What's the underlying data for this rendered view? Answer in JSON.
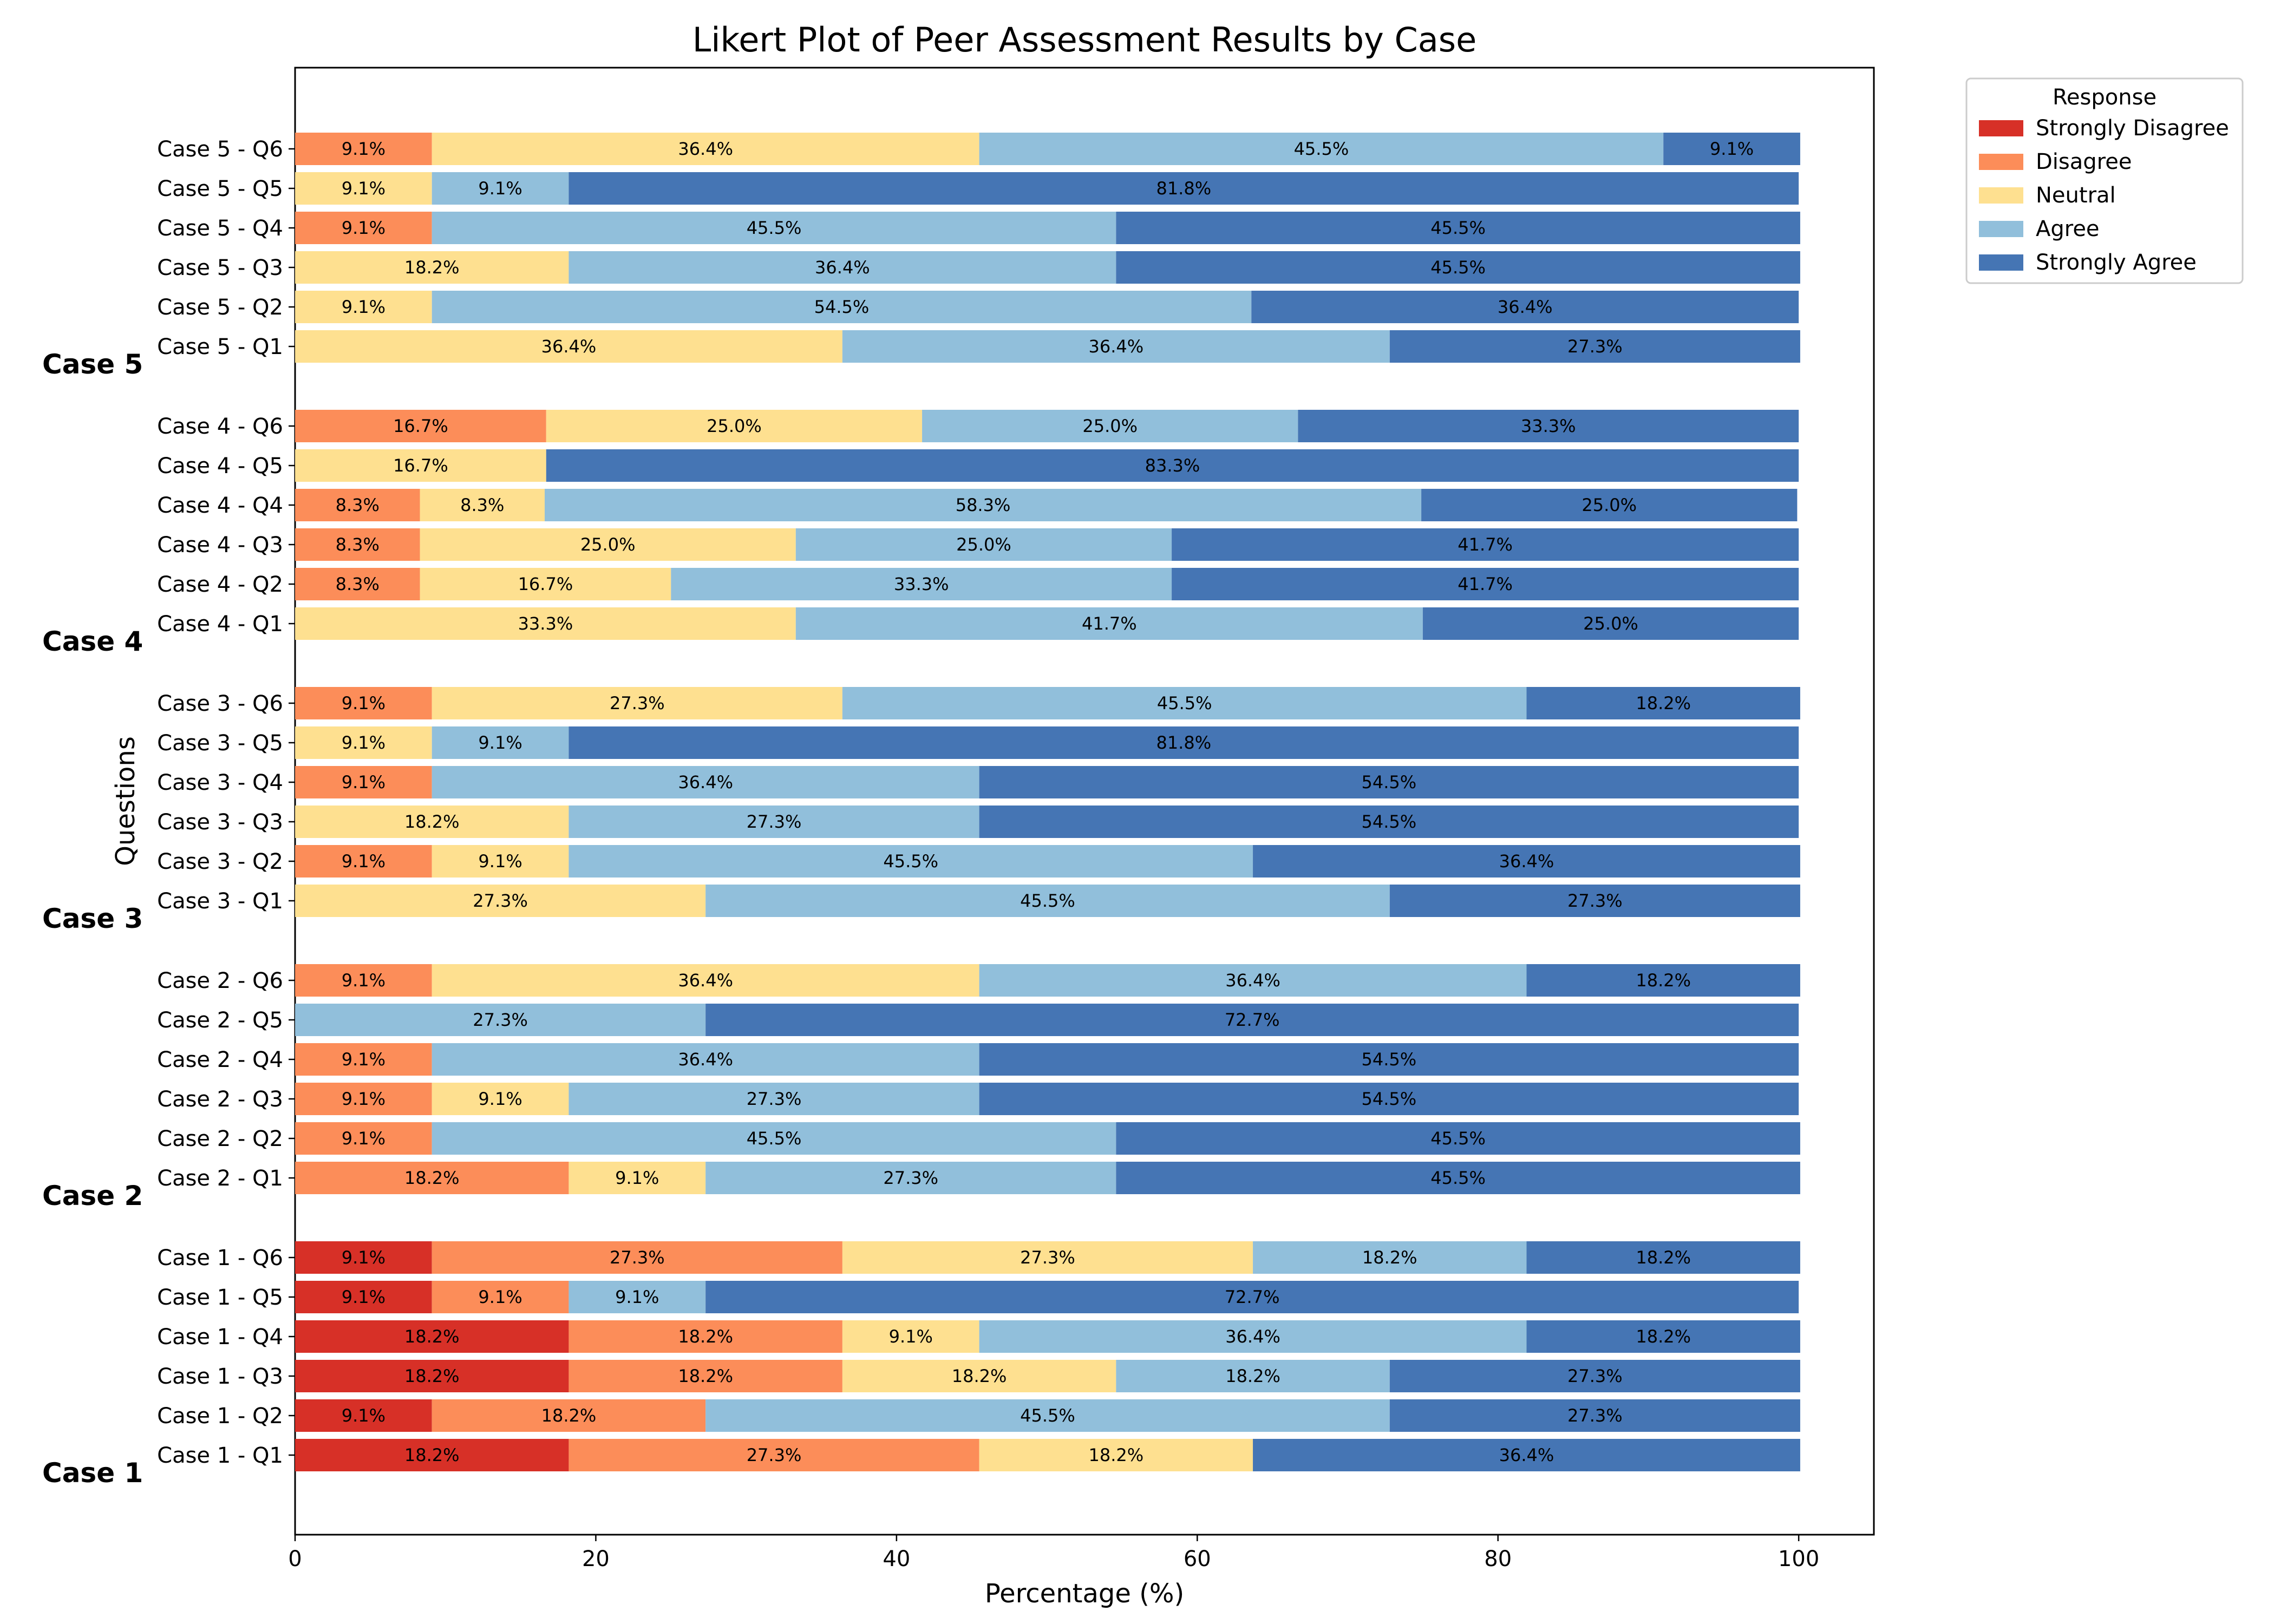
{
  "chart_data": {
    "type": "bar",
    "orientation": "horizontal-stacked",
    "title": "Likert Plot of Peer Assessment Results by Case",
    "xlabel": "Percentage (%)",
    "ylabel": "Questions",
    "xlim": [
      0,
      105
    ],
    "xticks": [
      "0",
      "20",
      "40",
      "60",
      "80",
      "100"
    ],
    "grid": false,
    "legend": {
      "title": "Response",
      "placement": "outside-top-right",
      "entries": [
        "Strongly Disagree",
        "Disagree",
        "Neutral",
        "Agree",
        "Strongly Agree"
      ]
    },
    "colors": [
      "#d73027",
      "#fc8d59",
      "#fee090",
      "#91bfdb",
      "#4575b4"
    ],
    "groups": [
      "Case 5",
      "Case 4",
      "Case 3",
      "Case 2",
      "Case 1"
    ],
    "categories": [
      "Case 5 - Q6",
      "Case 5 - Q5",
      "Case 5 - Q4",
      "Case 5 - Q3",
      "Case 5 - Q2",
      "Case 5 - Q1",
      "Case 4 - Q6",
      "Case 4 - Q5",
      "Case 4 - Q4",
      "Case 4 - Q3",
      "Case 4 - Q2",
      "Case 4 - Q1",
      "Case 3 - Q6",
      "Case 3 - Q5",
      "Case 3 - Q4",
      "Case 3 - Q3",
      "Case 3 - Q2",
      "Case 3 - Q1",
      "Case 2 - Q6",
      "Case 2 - Q5",
      "Case 2 - Q4",
      "Case 2 - Q3",
      "Case 2 - Q2",
      "Case 2 - Q1",
      "Case 1 - Q6",
      "Case 1 - Q5",
      "Case 1 - Q4",
      "Case 1 - Q3",
      "Case 1 - Q2",
      "Case 1 - Q1"
    ],
    "series": [
      {
        "name": "Strongly Disagree",
        "values": [
          0,
          0,
          0,
          0,
          0,
          0,
          0,
          0,
          0,
          0,
          0,
          0,
          0,
          0,
          0,
          0,
          0,
          0,
          0,
          0,
          0,
          0,
          0,
          0,
          9.1,
          9.1,
          18.2,
          18.2,
          9.1,
          18.2
        ]
      },
      {
        "name": "Disagree",
        "values": [
          9.1,
          0,
          9.1,
          0,
          0,
          0,
          16.7,
          0,
          8.3,
          8.3,
          8.3,
          0,
          9.1,
          0,
          9.1,
          0,
          9.1,
          0,
          9.1,
          0,
          9.1,
          9.1,
          9.1,
          18.2,
          27.3,
          9.1,
          18.2,
          18.2,
          18.2,
          27.3
        ]
      },
      {
        "name": "Neutral",
        "values": [
          36.4,
          9.1,
          0,
          18.2,
          9.1,
          36.4,
          25.0,
          16.7,
          8.3,
          25.0,
          16.7,
          33.3,
          27.3,
          9.1,
          0,
          18.2,
          9.1,
          27.3,
          36.4,
          0,
          0,
          9.1,
          0,
          9.1,
          27.3,
          0,
          9.1,
          18.2,
          0,
          18.2
        ]
      },
      {
        "name": "Agree",
        "values": [
          45.5,
          9.1,
          45.5,
          36.4,
          54.5,
          36.4,
          25.0,
          0,
          58.3,
          25.0,
          33.3,
          41.7,
          45.5,
          9.1,
          36.4,
          27.3,
          45.5,
          45.5,
          36.4,
          27.3,
          36.4,
          27.3,
          45.5,
          27.3,
          18.2,
          9.1,
          36.4,
          18.2,
          45.5,
          0
        ]
      },
      {
        "name": "Strongly Agree",
        "values": [
          9.1,
          81.8,
          45.5,
          45.5,
          36.4,
          27.3,
          33.3,
          83.3,
          25.0,
          41.7,
          41.7,
          25.0,
          18.2,
          81.8,
          54.5,
          54.5,
          36.4,
          27.3,
          18.2,
          72.7,
          54.5,
          54.5,
          45.5,
          45.5,
          18.2,
          72.7,
          18.2,
          27.3,
          27.3,
          36.4
        ]
      }
    ]
  }
}
